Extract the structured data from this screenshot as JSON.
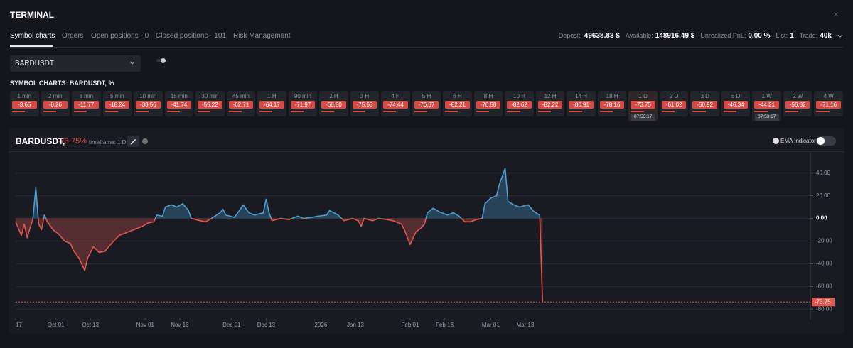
{
  "header": {
    "title": "TERMINAL",
    "close": "×"
  },
  "tabs": [
    "Symbol charts",
    "Orders",
    "Open positions - 0",
    "Closed positions - 101",
    "Risk Management"
  ],
  "account": [
    {
      "label": "Deposit:",
      "value": "49638.83 $"
    },
    {
      "label": "Available:",
      "value": "148916.49 $"
    },
    {
      "label": "Unrealized PnL:",
      "value": "0.00 %"
    },
    {
      "label": "List:",
      "value": "1"
    },
    {
      "label": "Trade:",
      "value": "40k"
    }
  ],
  "symbol_select": "BARDUSDT",
  "section_title": "SYMBOL CHARTS: BARDUSDT, %",
  "timeframes": [
    {
      "label": "1 min",
      "value": "-3.65"
    },
    {
      "label": "2 min",
      "value": "-8.26"
    },
    {
      "label": "3 min",
      "value": "-11.77"
    },
    {
      "label": "5 min",
      "value": "-18.24"
    },
    {
      "label": "10 min",
      "value": "-33.56"
    },
    {
      "label": "15 min",
      "value": "-41.74"
    },
    {
      "label": "30 min",
      "value": "-55.22"
    },
    {
      "label": "45 min",
      "value": "-62.71"
    },
    {
      "label": "1 H",
      "value": "-64.17"
    },
    {
      "label": "90 min",
      "value": "-71.97"
    },
    {
      "label": "2 H",
      "value": "-68.80"
    },
    {
      "label": "3 H",
      "value": "-75.53"
    },
    {
      "label": "4 H",
      "value": "-74.44"
    },
    {
      "label": "5 H",
      "value": "-76.87"
    },
    {
      "label": "6 H",
      "value": "-82.21"
    },
    {
      "label": "8 H",
      "value": "-76.58"
    },
    {
      "label": "10 H",
      "value": "-82.62"
    },
    {
      "label": "12 H",
      "value": "-82.22"
    },
    {
      "label": "14 H",
      "value": "-80.91"
    },
    {
      "label": "18 H",
      "value": "-78.16"
    },
    {
      "label": "1 D",
      "value": "-73.75",
      "timer": "07:53:17",
      "active": true
    },
    {
      "label": "2 D",
      "value": "-61.02"
    },
    {
      "label": "3 D",
      "value": "-50.92"
    },
    {
      "label": "5 D",
      "value": "-46.34"
    },
    {
      "label": "1 W",
      "value": "-44.21",
      "timer": "07:53:17"
    },
    {
      "label": "2 W",
      "value": "-56.82"
    },
    {
      "label": "4 W",
      "value": "-71.16"
    }
  ],
  "chart_panel": {
    "symbol": "BARDUSDT,",
    "change": "-73.75%",
    "timeframe": "timeframe: 1 D",
    "ema": "EMA Indicator"
  },
  "chart_data": {
    "type": "line",
    "x": [
      0,
      2,
      3,
      4,
      6,
      7,
      8,
      9,
      10,
      11,
      13,
      15,
      17,
      19,
      20,
      22,
      24,
      25,
      27,
      29,
      31,
      34,
      36,
      39,
      41,
      44,
      46,
      48,
      49,
      51,
      52,
      54,
      56,
      58,
      60,
      61,
      64,
      66,
      68,
      71,
      72,
      73,
      76,
      78,
      79,
      81,
      83,
      86,
      87,
      88,
      89,
      92,
      95,
      98,
      100,
      103,
      105,
      108,
      109,
      112,
      114,
      117,
      119,
      120,
      121,
      124,
      126,
      129,
      131,
      134,
      135,
      137,
      139,
      141,
      142,
      143,
      145,
      147,
      150,
      152,
      154,
      156,
      158,
      160,
      162,
      163,
      165,
      167,
      168,
      170,
      171,
      173,
      175,
      178,
      180,
      182,
      183
    ],
    "values": [
      -3,
      -15,
      -5,
      -17,
      0,
      27,
      -5,
      -10,
      3,
      -3,
      -10,
      -14,
      -20,
      -22,
      -28,
      -35,
      -46,
      -35,
      -25,
      -30,
      -29,
      -20,
      -15,
      -12,
      -10,
      -7,
      -4,
      -3,
      3,
      2,
      10,
      12,
      10,
      13,
      7,
      0,
      -2,
      -3,
      0,
      5,
      8,
      3,
      1,
      8,
      12,
      5,
      3,
      5,
      17,
      5,
      -2,
      0,
      -1,
      2,
      0,
      1,
      2,
      3,
      7,
      3,
      -2,
      0,
      -2,
      -7,
      0,
      -2,
      0,
      -1,
      -2,
      -5,
      -10,
      -23,
      -12,
      -8,
      -5,
      5,
      9,
      6,
      3,
      5,
      2,
      -3,
      -3,
      -1,
      0,
      13,
      18,
      20,
      30,
      44,
      15,
      12,
      10,
      12,
      6,
      3,
      -73.75
    ],
    "xlim": [
      0,
      276
    ],
    "xticks": [
      {
        "value": 0,
        "label": "17"
      },
      {
        "value": 14,
        "label": "Oct 01"
      },
      {
        "value": 26,
        "label": "Oct 13"
      },
      {
        "value": 45,
        "label": "Nov 01"
      },
      {
        "value": 57,
        "label": "Nov 13"
      },
      {
        "value": 75,
        "label": "Dec 01"
      },
      {
        "value": 87,
        "label": "Dec 13"
      },
      {
        "value": 106,
        "label": "2026"
      },
      {
        "value": 118,
        "label": "Jan 13"
      },
      {
        "value": 137,
        "label": "Feb 01"
      },
      {
        "value": 149,
        "label": "Feb 13"
      },
      {
        "value": 165,
        "label": "Mar 01"
      },
      {
        "value": 177,
        "label": "Mar 13"
      }
    ],
    "ylim": [
      -88,
      58
    ],
    "yticks": [
      {
        "value": 40,
        "label": "40.00"
      },
      {
        "value": 20,
        "label": "20.00"
      },
      {
        "value": 0,
        "label": "0.00"
      },
      {
        "value": -20,
        "label": "-20.00"
      },
      {
        "value": -40,
        "label": "-40.00"
      },
      {
        "value": -60,
        "label": "-60.00"
      },
      {
        "value": -80,
        "label": "-80.00"
      }
    ],
    "last_value": -73.75,
    "colors": {
      "positive": "#4a9fd4",
      "negative": "#e0574f"
    },
    "grid": true
  }
}
